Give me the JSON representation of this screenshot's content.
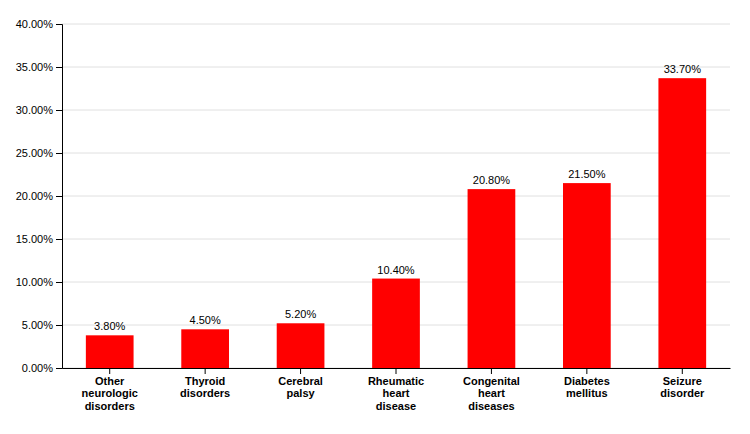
{
  "chart_data": {
    "type": "bar",
    "categories": [
      "Other\nneurologic\ndisorders",
      "Thyroid\ndisorders",
      "Cerebral\npalsy",
      "Rheumatic\nheart\ndisease",
      "Congenital\nheart\ndiseases",
      "Diabetes\nmellitus",
      "Seizure\ndisorder"
    ],
    "values": [
      3.8,
      4.5,
      5.2,
      10.4,
      20.8,
      21.5,
      33.7
    ],
    "value_labels": [
      "3.80%",
      "4.50%",
      "5.20%",
      "10.40%",
      "20.80%",
      "21.50%",
      "33.70%"
    ],
    "data_labels": true,
    "color": "#ff0000",
    "ylim": [
      0,
      40
    ],
    "yticks": [
      {
        "value": 0,
        "label": "0.00%"
      },
      {
        "value": 5,
        "label": "5.00%"
      },
      {
        "value": 10,
        "label": "10.00%"
      },
      {
        "value": 15,
        "label": "15.00%"
      },
      {
        "value": 20,
        "label": "20.00%"
      },
      {
        "value": 25,
        "label": "25.00%"
      },
      {
        "value": 30,
        "label": "30.00%"
      },
      {
        "value": 35,
        "label": "35.00%"
      },
      {
        "value": 40,
        "label": "40.00%"
      }
    ],
    "grid": true
  }
}
